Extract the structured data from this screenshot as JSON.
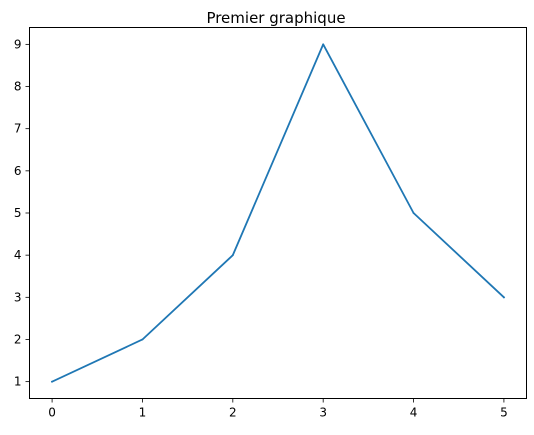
{
  "chart_data": {
    "type": "line",
    "title": "Premier graphique",
    "xlabel": "",
    "ylabel": "",
    "x": [
      0,
      1,
      2,
      3,
      4,
      5
    ],
    "series": [
      {
        "name": "",
        "color": "#1f77b4",
        "values": [
          1,
          2,
          4,
          9,
          5,
          3
        ]
      }
    ],
    "xlim": [
      -0.25,
      5.25
    ],
    "ylim": [
      0.6,
      9.4
    ],
    "xticks": [
      0,
      1,
      2,
      3,
      4,
      5
    ],
    "yticks": [
      1,
      2,
      3,
      4,
      5,
      6,
      7,
      8,
      9
    ],
    "grid": false,
    "legend": "none"
  }
}
